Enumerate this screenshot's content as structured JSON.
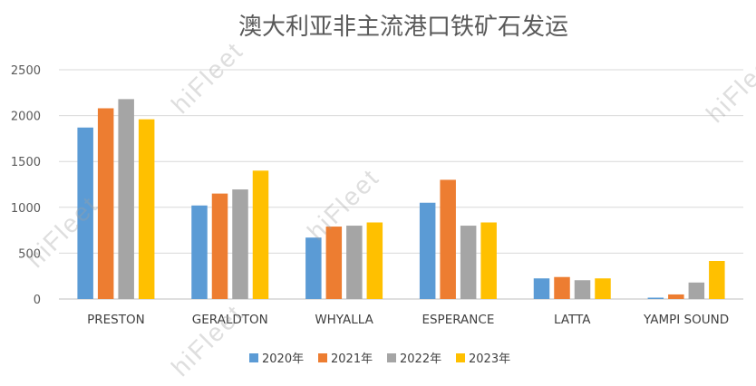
{
  "chart_data": {
    "type": "bar",
    "title": "澳大利亚非主流港口铁矿石发运",
    "categories": [
      "PRESTON",
      "GERALDTON",
      "WHYALLA",
      "ESPERANCE",
      "LATTA",
      "YAMPI SOUND"
    ],
    "series": [
      {
        "name": "2020年",
        "color": "#5b9bd5",
        "values": [
          1870,
          1020,
          670,
          1050,
          225,
          15
        ]
      },
      {
        "name": "2021年",
        "color": "#ed7d31",
        "values": [
          2080,
          1150,
          790,
          1300,
          240,
          50
        ]
      },
      {
        "name": "2022年",
        "color": "#a5a5a5",
        "values": [
          2180,
          1195,
          800,
          800,
          205,
          180
        ]
      },
      {
        "name": "2023年",
        "color": "#ffc000",
        "values": [
          1960,
          1400,
          835,
          835,
          225,
          415
        ]
      }
    ],
    "ylim": [
      0,
      2500
    ],
    "yticks": [
      0,
      500,
      1000,
      1500,
      2000,
      2500
    ],
    "grid": true,
    "legend_position": "bottom"
  },
  "watermarks": [
    "hiFleet",
    "hiFleet",
    "hiFleet",
    "hiFleet",
    "hiFleet"
  ]
}
